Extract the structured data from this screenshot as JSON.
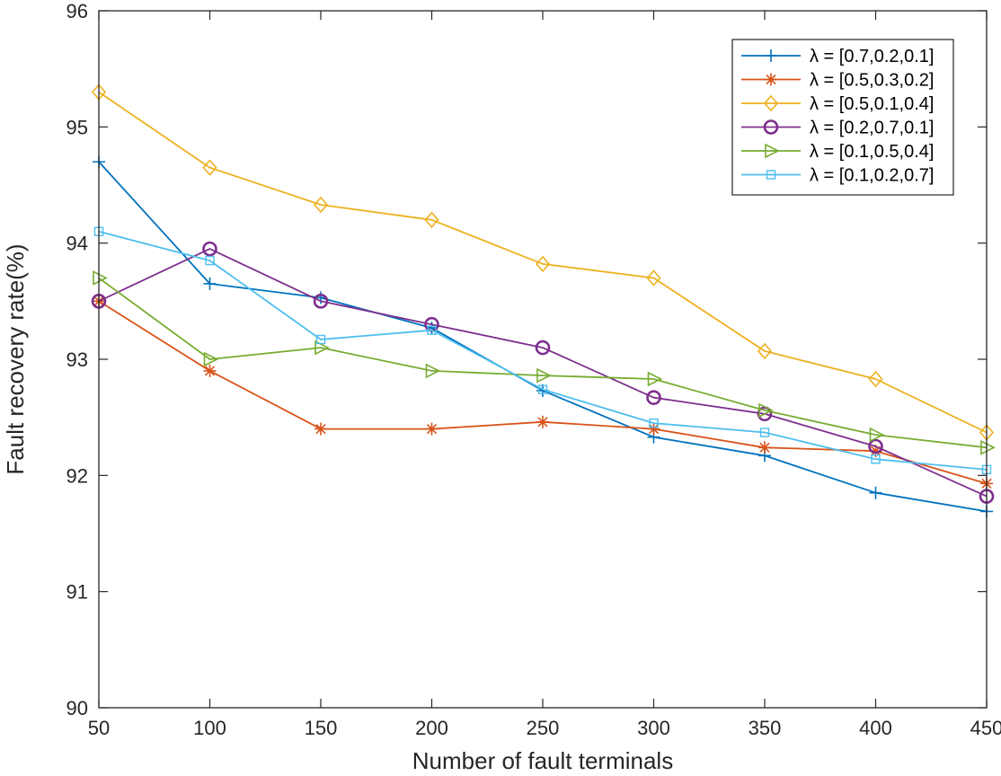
{
  "chart_data": {
    "type": "line",
    "title": "",
    "xlabel": "Number of fault terminals",
    "ylabel": "Fault recovery rate(%)",
    "x": [
      50,
      100,
      150,
      200,
      250,
      300,
      350,
      400,
      450
    ],
    "xlim": [
      50,
      450
    ],
    "ylim": [
      90,
      96
    ],
    "xticks": [
      50,
      100,
      150,
      200,
      250,
      300,
      350,
      400,
      450
    ],
    "yticks": [
      90,
      91,
      92,
      93,
      94,
      95,
      96
    ],
    "grid": false,
    "legend_position": "top-right",
    "series": [
      {
        "name": "λ = [0.7,0.2,0.1]",
        "color": "#0072BD",
        "marker": "plus",
        "values": [
          94.7,
          93.65,
          93.53,
          93.27,
          92.73,
          92.33,
          92.17,
          91.85,
          91.69
        ]
      },
      {
        "name": "λ = [0.5,0.3,0.2]",
        "color": "#D95319",
        "marker": "asterisk",
        "values": [
          93.5,
          92.9,
          92.4,
          92.4,
          92.46,
          92.4,
          92.24,
          92.21,
          91.93
        ]
      },
      {
        "name": "λ = [0.5,0.1,0.4]",
        "color": "#EDB120",
        "marker": "diamond",
        "values": [
          95.3,
          94.65,
          94.33,
          94.2,
          93.82,
          93.7,
          93.07,
          92.83,
          92.37
        ]
      },
      {
        "name": "λ = [0.2,0.7,0.1]",
        "color": "#7E2F8E",
        "marker": "circle",
        "values": [
          93.5,
          93.95,
          93.5,
          93.3,
          93.1,
          92.67,
          92.53,
          92.25,
          91.82
        ]
      },
      {
        "name": "λ = [0.1,0.5,0.4]",
        "color": "#77AC30",
        "marker": "triangle-right",
        "values": [
          93.7,
          93.0,
          93.1,
          92.9,
          92.86,
          92.83,
          92.56,
          92.35,
          92.24
        ]
      },
      {
        "name": "λ = [0.1,0.2,0.7]",
        "color": "#4DBEEE",
        "marker": "square",
        "values": [
          94.1,
          93.85,
          93.17,
          93.25,
          92.74,
          92.45,
          92.37,
          92.14,
          92.05
        ]
      }
    ]
  }
}
